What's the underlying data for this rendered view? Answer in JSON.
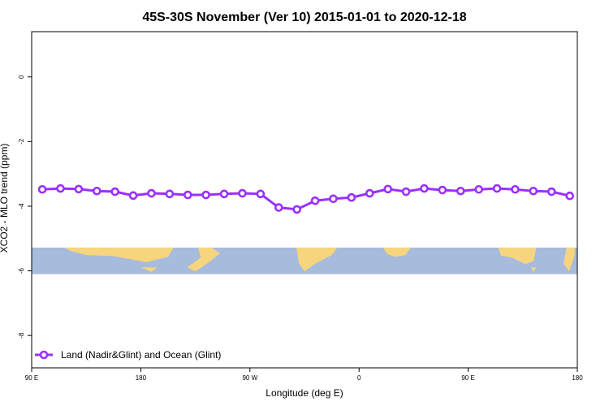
{
  "chart_data": {
    "type": "line",
    "title": "45S-30S November (Ver 10)   2015-01-01 to 2020-12-18",
    "xlabel": "Longitude (deg E)",
    "ylabel": "XCO2 - MLO trend (ppm)",
    "xlim": [
      90,
      450
    ],
    "ylim": [
      -9.0,
      1.4
    ],
    "x_ticks": [
      {
        "value": 90,
        "label": "90 E"
      },
      {
        "value": 162,
        "label": "180"
      },
      {
        "value": 234,
        "label": "90 W"
      },
      {
        "value": 306,
        "label": "0"
      },
      {
        "value": 378,
        "label": "90 E"
      },
      {
        "value": 450,
        "label": "180"
      }
    ],
    "y_ticks": [
      {
        "value": 0,
        "label": "0"
      },
      {
        "value": -2,
        "label": "-2"
      },
      {
        "value": -4,
        "label": "-4"
      },
      {
        "value": -6,
        "label": "-6"
      },
      {
        "value": -8,
        "label": "-8"
      }
    ],
    "grid": false,
    "legend_position": "bottom-left",
    "series": [
      {
        "name": "Land (Nadir&Glint) and Ocean (Glint)",
        "color": "#9b30ff",
        "x": [
          97,
          109,
          121,
          133,
          145,
          157,
          169,
          181,
          193,
          205,
          217,
          229,
          241,
          253,
          265,
          277,
          289,
          301,
          313,
          325,
          337,
          349,
          361,
          373,
          385,
          397,
          409,
          421,
          433,
          445
        ],
        "values": [
          -3.48,
          -3.45,
          -3.47,
          -3.53,
          -3.55,
          -3.67,
          -3.6,
          -3.62,
          -3.65,
          -3.65,
          -3.62,
          -3.6,
          -3.62,
          -4.04,
          -4.1,
          -3.83,
          -3.77,
          -3.73,
          -3.6,
          -3.47,
          -3.55,
          -3.45,
          -3.5,
          -3.53,
          -3.48,
          -3.45,
          -3.48,
          -3.53,
          -3.55,
          -3.68
        ]
      }
    ],
    "map_strip": {
      "y_range": [
        -5.28,
        -6.1
      ],
      "ocean_color": "#a7bcdc",
      "land_color": "#f7d57e"
    }
  }
}
